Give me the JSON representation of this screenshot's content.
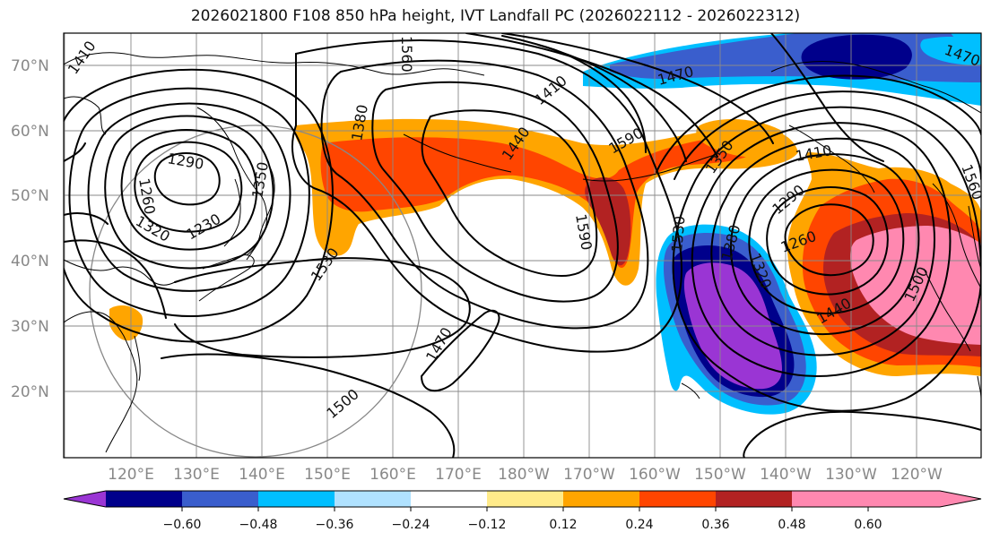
{
  "title": "2026021800 F108 850 hPa height, IVT Landfall PC (2026022112 - 2026022312)",
  "map": {
    "lat_labels": [
      "70°N",
      "60°N",
      "50°N",
      "40°N",
      "30°N",
      "20°N"
    ],
    "lon_labels": [
      "120°E",
      "130°E",
      "140°E",
      "150°E",
      "160°E",
      "170°E",
      "180°W",
      "170°W",
      "160°W",
      "150°W",
      "140°W",
      "130°W",
      "120°W"
    ],
    "contour_labels": [
      "1410",
      "1410",
      "1470",
      "1470",
      "1380",
      "1290",
      "1260",
      "1320",
      "1230",
      "1350",
      "1440",
      "1590",
      "1590",
      "1530",
      "1470",
      "1500",
      "1530",
      "1380",
      "1320",
      "1290",
      "1260",
      "1440",
      "1500",
      "1560",
      "1410",
      "1560",
      "1350"
    ]
  },
  "colorbar": {
    "ticks": [
      "−0.60",
      "−0.48",
      "−0.36",
      "−0.24",
      "−0.12",
      "0.12",
      "0.24",
      "0.36",
      "0.48",
      "0.60"
    ],
    "colors": [
      "#9a35d4",
      "#00008b",
      "#3a5ecd",
      "#00bfff",
      "#b0e2ff",
      "#ffffff",
      "#ffeb8a",
      "#ffa500",
      "#ff4500",
      "#b22222",
      "#ff88b0"
    ]
  }
}
